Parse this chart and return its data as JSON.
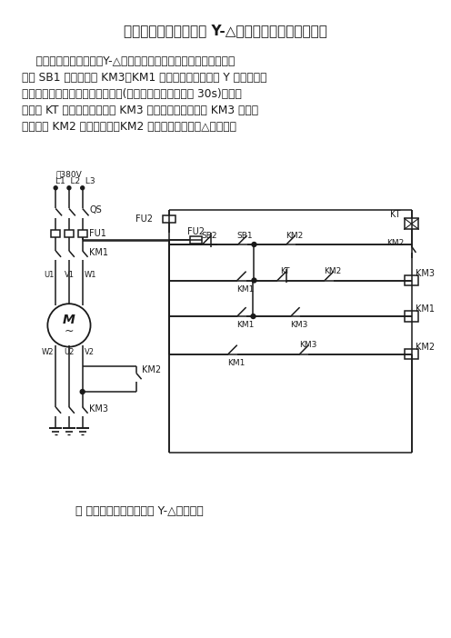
{
  "title": "用时间继电器自动转换 Y-△启动控制电路图原理图解",
  "body_lines": [
    "    用时间继电器自动转换Y-△启动电动机控制线路如图所示。当按下",
    "按钮 SB1 时，接触器 KM3、KM1 吸合，这时电动机为 Y 形启动。当",
    "经过一定延时，电动机启动完毕后(时间继电器一般控制在 30s)，时间",
    "继电器 KT 常闭触点断开，使 KM3 失电释放，同时由于 KM3 的释放",
    "又接通了 KM2 线圈的电源，KM2 吸合，电动机改为△形运行。"
  ],
  "caption": "图 用时间继电器自动转换 Y-△启动控制",
  "bg": "#ffffff",
  "lc": "#1a1a1a",
  "tc": "#1a1a1a",
  "title_fontsize": 11,
  "body_fontsize": 8.8,
  "caption_fontsize": 9
}
